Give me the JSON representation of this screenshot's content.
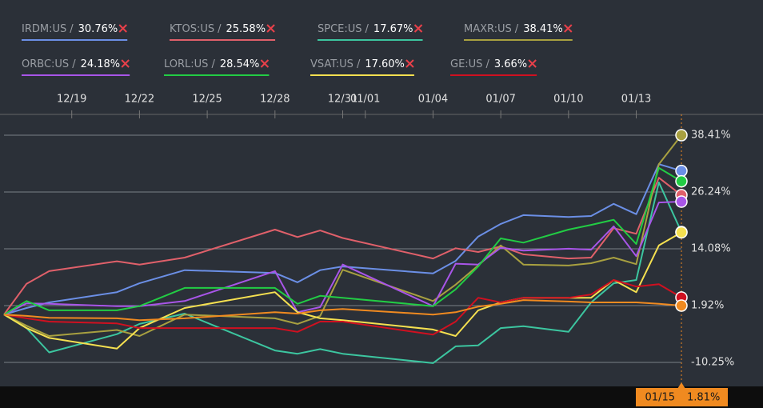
{
  "chart_data": {
    "type": "line",
    "legend_separator": "/",
    "x": [
      "12/16",
      "12/17",
      "12/18",
      "12/21",
      "12/22",
      "12/24",
      "12/28",
      "12/29",
      "12/30",
      "12/31",
      "01/04",
      "01/05",
      "01/06",
      "01/07",
      "01/08",
      "01/10",
      "01/11",
      "01/12",
      "01/13",
      "01/14",
      "01/15"
    ],
    "xlim": [
      "12/16",
      "01/15"
    ],
    "xticks": [
      "12/19",
      "12/22",
      "12/25",
      "12/28",
      "12/31",
      "01/01",
      "01/04",
      "01/07",
      "01/10",
      "01/13"
    ],
    "ylim": [
      -14.87,
      42.86
    ],
    "yticks": [
      {
        "value": 38.41,
        "label": "38.41%"
      },
      {
        "value": 26.24,
        "label": "26.24%"
      },
      {
        "value": 14.08,
        "label": "14.08%"
      },
      {
        "value": 1.92,
        "label": "1.92%"
      },
      {
        "value": -10.25,
        "label": "-10.25%"
      }
    ],
    "grid": true,
    "cursor_x": "01/15",
    "cursor_label": "1.81%",
    "series": [
      {
        "name": "IRDM:US",
        "last_label": "30.76%",
        "color": "#6b8fe6",
        "values": [
          0,
          1.4,
          2.6,
          4.8,
          6.7,
          9.5,
          8.9,
          6.9,
          9.5,
          10.3,
          8.8,
          11.5,
          16.7,
          19.4,
          21.3,
          20.9,
          21.1,
          23.7,
          21.5,
          32.2,
          30.76
        ]
      },
      {
        "name": "KTOS:US",
        "last_label": "25.58%",
        "color": "#e0606a",
        "values": [
          0,
          6.6,
          9.3,
          11.4,
          10.7,
          12.2,
          18.2,
          16.6,
          18.0,
          16.4,
          12.0,
          14.2,
          13.4,
          14.6,
          12.9,
          12.0,
          12.2,
          18.5,
          17.3,
          29.3,
          25.58
        ]
      },
      {
        "name": "SPCE:US",
        "last_label": "17.67%",
        "color": "#3cc6a0",
        "values": [
          0,
          -2.9,
          -8.1,
          -4.2,
          -2.0,
          0.2,
          -7.7,
          -8.4,
          -7.4,
          -8.4,
          -10.4,
          -6.8,
          -6.6,
          -2.9,
          -2.5,
          -3.7,
          2.6,
          6.7,
          7.4,
          28.3,
          17.67
        ]
      },
      {
        "name": "MAXR:US",
        "last_label": "38.41%",
        "color": "#a8a040",
        "values": [
          0,
          -2.4,
          -4.6,
          -3.3,
          -4.6,
          0.0,
          -0.8,
          -2.0,
          -0.3,
          9.6,
          2.9,
          6.4,
          10.5,
          14.8,
          10.7,
          10.5,
          11.0,
          12.2,
          10.8,
          32.2,
          38.41
        ]
      },
      {
        "name": "ORBC:US",
        "last_label": "24.18%",
        "color": "#a855e8",
        "values": [
          0,
          2.4,
          2.3,
          1.8,
          1.8,
          2.9,
          9.3,
          0.5,
          1.6,
          10.7,
          1.8,
          10.9,
          10.7,
          14.3,
          13.7,
          14.1,
          13.9,
          18.9,
          12.5,
          24.0,
          24.18
        ]
      },
      {
        "name": "LORL:US",
        "last_label": "28.54%",
        "color": "#22cc44",
        "values": [
          0,
          2.9,
          0.9,
          0.9,
          1.8,
          5.7,
          5.7,
          2.3,
          4.0,
          3.6,
          1.8,
          5.4,
          10.3,
          16.3,
          15.4,
          18.2,
          19.2,
          20.3,
          15.1,
          31.4,
          28.54
        ]
      },
      {
        "name": "VSAT:US",
        "last_label": "17.60%",
        "color": "#f5e050",
        "values": [
          0,
          -2.9,
          -5.0,
          -7.3,
          -2.9,
          1.4,
          4.8,
          0.5,
          -0.8,
          -1.2,
          -3.2,
          -4.6,
          0.9,
          2.6,
          3.6,
          3.6,
          3.6,
          7.4,
          4.8,
          14.8,
          17.6
        ]
      },
      {
        "name": "GE:US",
        "last_label": "3.66%",
        "color": "#d01020",
        "values": [
          0,
          -0.8,
          -1.5,
          -1.9,
          -2.9,
          -2.9,
          -2.9,
          -3.7,
          -1.5,
          -1.5,
          -4.3,
          -1.5,
          3.6,
          2.6,
          3.6,
          3.6,
          4.3,
          7.4,
          6.0,
          6.5,
          3.66
        ]
      },
      {
        "color": "#f08a20",
        "values": [
          0,
          -0.3,
          -0.7,
          -0.8,
          -1.2,
          -0.8,
          0.5,
          0.2,
          0.9,
          1.2,
          0,
          0.5,
          1.7,
          2.3,
          3.1,
          2.8,
          2.6,
          2.6,
          2.6,
          2.3,
          1.92
        ]
      }
    ]
  }
}
